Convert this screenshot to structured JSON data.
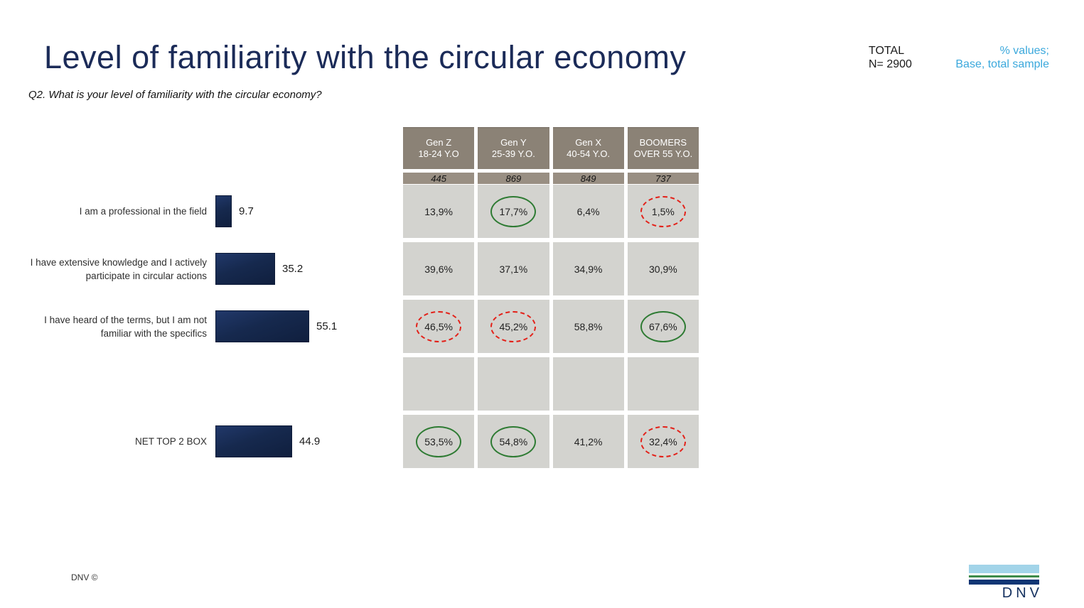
{
  "slide": {
    "title": "Level of familiarity with the circular economy",
    "question": "Q2. What is your level of familiarity with the circular economy?",
    "total_label": "TOTAL",
    "total_base": "N= 2900",
    "note_line1": "% values;",
    "note_line2": "Base, total sample",
    "footer_left": "DNV ©",
    "logo_text": "DNV"
  },
  "colors": {
    "title_navy": "#1b2b58",
    "accent_blue": "#3aa8dc",
    "bar_navy": "#16294e",
    "table_header_bg": "#8b8276",
    "table_base_bg": "#998f83",
    "table_cell_bg": "#d3d3cf",
    "highlight_green": "#2e7b33",
    "highlight_red": "#e32119",
    "logo_light_blue": "#a2d4e9",
    "logo_green": "#3d8b49",
    "logo_dark_blue": "#0f3674"
  },
  "chart_data": {
    "type": "bar",
    "orientation": "horizontal",
    "title": "Level of familiarity with the circular economy",
    "categories": [
      "I am a professional in the field",
      "I have extensive knowledge and I actively participate in circular actions",
      "I have heard of the terms, but I am not familiar with the specifics",
      "NET TOP 2 BOX"
    ],
    "values": [
      9.7,
      35.2,
      55.1,
      44.9
    ],
    "xlim": [
      0,
      60
    ],
    "bar_color": "#16294e",
    "value_labels": [
      "9.7",
      "35.2",
      "55.1",
      "44.9"
    ]
  },
  "table": {
    "columns": [
      {
        "gen": "Gen Z",
        "age": "18-24 Y.O"
      },
      {
        "gen": "Gen Y",
        "age": "25-39 Y.O."
      },
      {
        "gen": "Gen X",
        "age": "40-54 Y.O."
      },
      {
        "gen": "BOOMERS",
        "age": "OVER 55 Y.O."
      }
    ],
    "bases": [
      "445",
      "869",
      "849",
      "737"
    ],
    "rows": [
      {
        "values": [
          "13,9%",
          "17,7%",
          "6,4%",
          "1,5%"
        ],
        "highlights": [
          "",
          "green",
          "",
          "red"
        ]
      },
      {
        "values": [
          "39,6%",
          "37,1%",
          "34,9%",
          "30,9%"
        ],
        "highlights": [
          "",
          "",
          "",
          ""
        ]
      },
      {
        "values": [
          "46,5%",
          "45,2%",
          "58,8%",
          "67,6%"
        ],
        "highlights": [
          "red",
          "red",
          "",
          "green"
        ]
      },
      {
        "values": [
          "",
          "",
          "",
          ""
        ],
        "highlights": [
          "",
          "",
          "",
          ""
        ]
      },
      {
        "values": [
          "53,5%",
          "54,8%",
          "41,2%",
          "32,4%"
        ],
        "highlights": [
          "green",
          "green",
          "",
          "red"
        ]
      }
    ]
  }
}
